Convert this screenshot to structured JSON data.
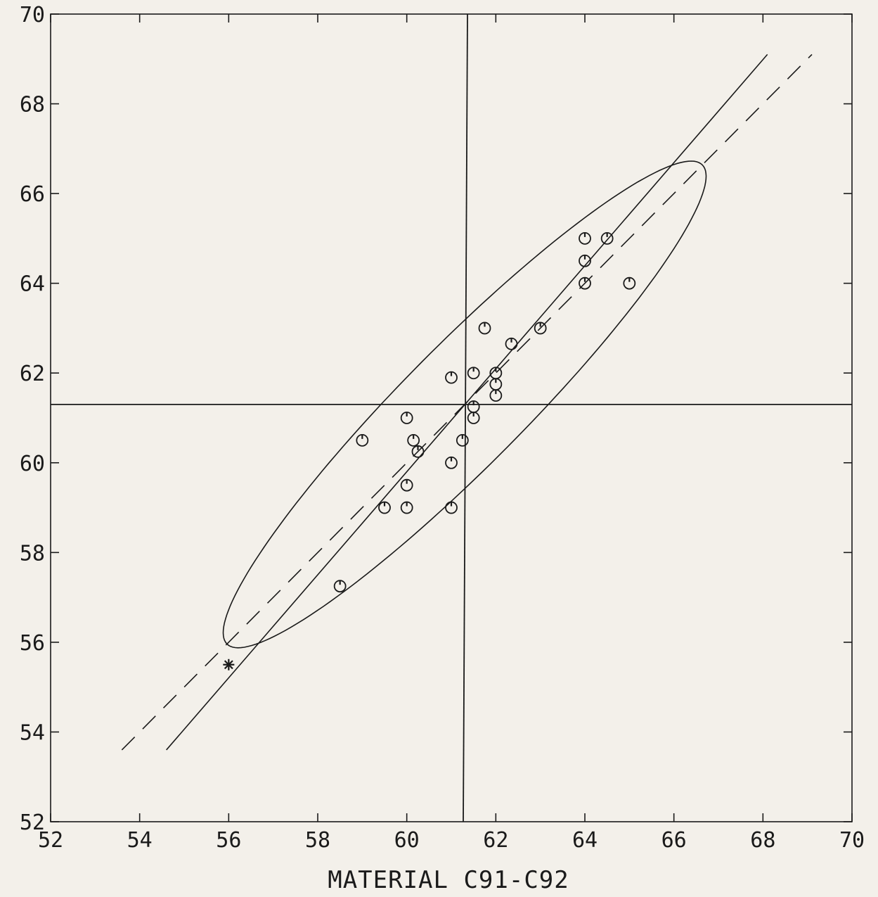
{
  "chart_data": {
    "type": "scatter",
    "title": "",
    "xlabel": "MATERIAL C91-C92",
    "ylabel": "",
    "xlim": [
      52,
      70
    ],
    "ylim": [
      52,
      70
    ],
    "xticks": [
      52,
      54,
      56,
      58,
      60,
      62,
      64,
      66,
      68,
      70
    ],
    "yticks": [
      52,
      54,
      56,
      58,
      60,
      62,
      64,
      66,
      68,
      70
    ],
    "grid": false,
    "series": [
      {
        "marker": "circle-with-tick",
        "points": [
          [
            58.5,
            57.25
          ],
          [
            59.0,
            60.5
          ],
          [
            59.5,
            59.0
          ],
          [
            60.0,
            59.0
          ],
          [
            60.0,
            59.5
          ],
          [
            60.0,
            61.0
          ],
          [
            60.15,
            60.5
          ],
          [
            60.25,
            60.25
          ],
          [
            61.0,
            59.0
          ],
          [
            61.0,
            60.0
          ],
          [
            61.0,
            61.9
          ],
          [
            61.25,
            60.5
          ],
          [
            61.5,
            61.0
          ],
          [
            61.5,
            61.25
          ],
          [
            61.5,
            62.0
          ],
          [
            61.75,
            63.0
          ],
          [
            62.0,
            61.5
          ],
          [
            62.0,
            61.75
          ],
          [
            62.0,
            62.0
          ],
          [
            62.35,
            62.65
          ],
          [
            63.0,
            63.0
          ],
          [
            64.0,
            64.0
          ],
          [
            64.0,
            64.5
          ],
          [
            64.0,
            65.0
          ],
          [
            64.5,
            65.0
          ],
          [
            65.0,
            64.0
          ]
        ]
      },
      {
        "marker": "asterisk",
        "points": [
          [
            56.0,
            55.5
          ]
        ]
      }
    ],
    "reference_lines": {
      "vertical_x": 61.3,
      "horizontal_y": 61.3
    },
    "fit_lines": [
      {
        "style": "solid",
        "from": [
          54.6,
          53.6
        ],
        "to": [
          68.1,
          69.1
        ]
      },
      {
        "style": "dashed",
        "from": [
          53.6,
          53.6
        ],
        "to": [
          69.1,
          69.1
        ]
      }
    ],
    "ellipse": {
      "center": [
        61.3,
        61.3
      ],
      "angle_deg": 45,
      "semi_major": 7.55,
      "semi_minor": 1.35
    }
  }
}
